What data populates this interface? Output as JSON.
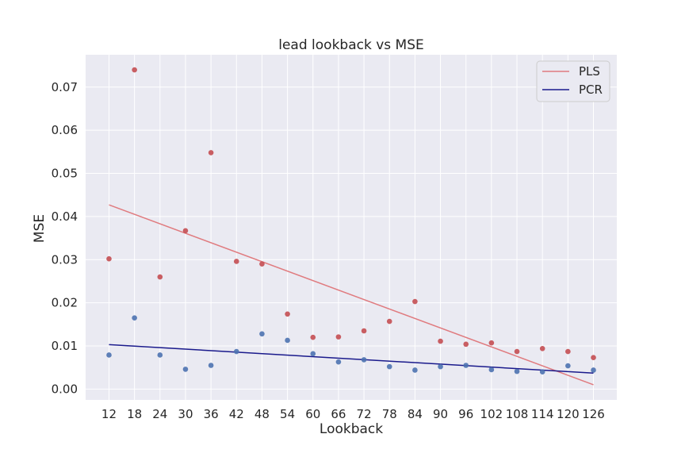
{
  "chart_data": {
    "type": "scatter",
    "title": "lead lookback vs MSE",
    "xlabel": "Lookback",
    "ylabel": "MSE",
    "x": [
      12,
      18,
      24,
      30,
      36,
      42,
      48,
      54,
      60,
      66,
      72,
      78,
      84,
      90,
      96,
      102,
      108,
      114,
      120,
      126
    ],
    "xlim": [
      6.5,
      131.5
    ],
    "ylim": [
      -0.0025,
      0.0775
    ],
    "yticks": [
      0.0,
      0.01,
      0.02,
      0.03,
      0.04,
      0.05,
      0.06,
      0.07
    ],
    "ytick_labels": [
      "0.00",
      "0.01",
      "0.02",
      "0.03",
      "0.04",
      "0.05",
      "0.06",
      "0.07"
    ],
    "grid": true,
    "legend_position": "top-right",
    "series": [
      {
        "name": "PLS",
        "color": "#c44e52",
        "values": [
          0.0302,
          0.074,
          0.026,
          0.0367,
          0.0548,
          0.0296,
          0.029,
          0.0174,
          0.012,
          0.0121,
          0.0135,
          0.0157,
          0.0203,
          0.0111,
          0.0104,
          0.0107,
          0.0087,
          0.0094,
          0.0087,
          0.0073
        ],
        "trend": {
          "color": "#e07b7f",
          "start": [
            12,
            0.0427
          ],
          "end": [
            126,
            0.001
          ]
        }
      },
      {
        "name": "PCR",
        "color": "#4c72b0",
        "values": [
          0.0079,
          0.0165,
          0.0079,
          0.0046,
          0.0055,
          0.0087,
          0.0128,
          0.0113,
          0.0082,
          0.0063,
          0.0068,
          0.0052,
          0.0044,
          0.0052,
          0.0055,
          0.0045,
          0.0041,
          0.004,
          0.0054,
          0.0044
        ],
        "trend": {
          "color": "#1a1a8c",
          "start": [
            12,
            0.0103
          ],
          "end": [
            126,
            0.0037
          ]
        }
      }
    ]
  }
}
